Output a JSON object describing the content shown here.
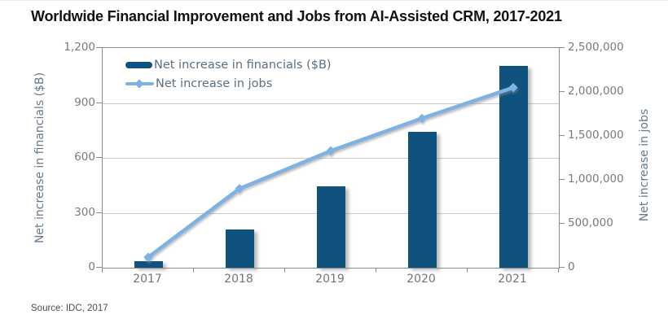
{
  "title": "Worldwide Financial Improvement and Jobs from AI-Assisted CRM, 2017-2021",
  "source": "Source: IDC, 2017",
  "colors": {
    "bar": "#0F527E",
    "line": "#7DB2E2",
    "tick_text": "#7A7A7A",
    "category_text": "#757575",
    "axis_title_text": "#66798A",
    "legend_text": "#5C7082",
    "grid": "#C9C9C9",
    "axis_line": "#8C8C8C",
    "title_text": "#121212"
  },
  "chart_data": {
    "type": "combo-bar-line-dual-axis",
    "title": "Worldwide Financial Improvement and Jobs from AI-Assisted CRM, 2017-2021",
    "categories": [
      "2017",
      "2018",
      "2019",
      "2020",
      "2021"
    ],
    "series": [
      {
        "name": "Net increase in financials ($B)",
        "type": "bar",
        "axis": "left",
        "values": [
          35,
          210,
          445,
          740,
          1100
        ]
      },
      {
        "name": "Net increase in jobs",
        "type": "line",
        "axis": "right",
        "values": [
          120000,
          900000,
          1330000,
          1700000,
          2050000
        ]
      }
    ],
    "left_axis": {
      "title": "Net increase in financials ($B)",
      "min": 0,
      "max": 1200,
      "tick_values": [
        0,
        300,
        600,
        900,
        1200
      ],
      "tick_labels": [
        "0",
        "300",
        "600",
        "900",
        "1,200"
      ]
    },
    "right_axis": {
      "title": "Net increase in jobs",
      "min": 0,
      "max": 2500000,
      "tick_values": [
        0,
        500000,
        1000000,
        1500000,
        2000000,
        2500000
      ],
      "tick_labels": [
        "0",
        "500,000",
        "1,000,000",
        "1,500,000",
        "2,000,000",
        "2,500,000"
      ]
    },
    "legend": {
      "position": "top-left-inside",
      "entries": [
        "Net increase in financials ($B)",
        "Net increase in jobs"
      ]
    },
    "grid": "horizontal gridlines at left-axis ticks 300/600/900",
    "style_notes": "bars and line have soft gray drop shadows"
  }
}
